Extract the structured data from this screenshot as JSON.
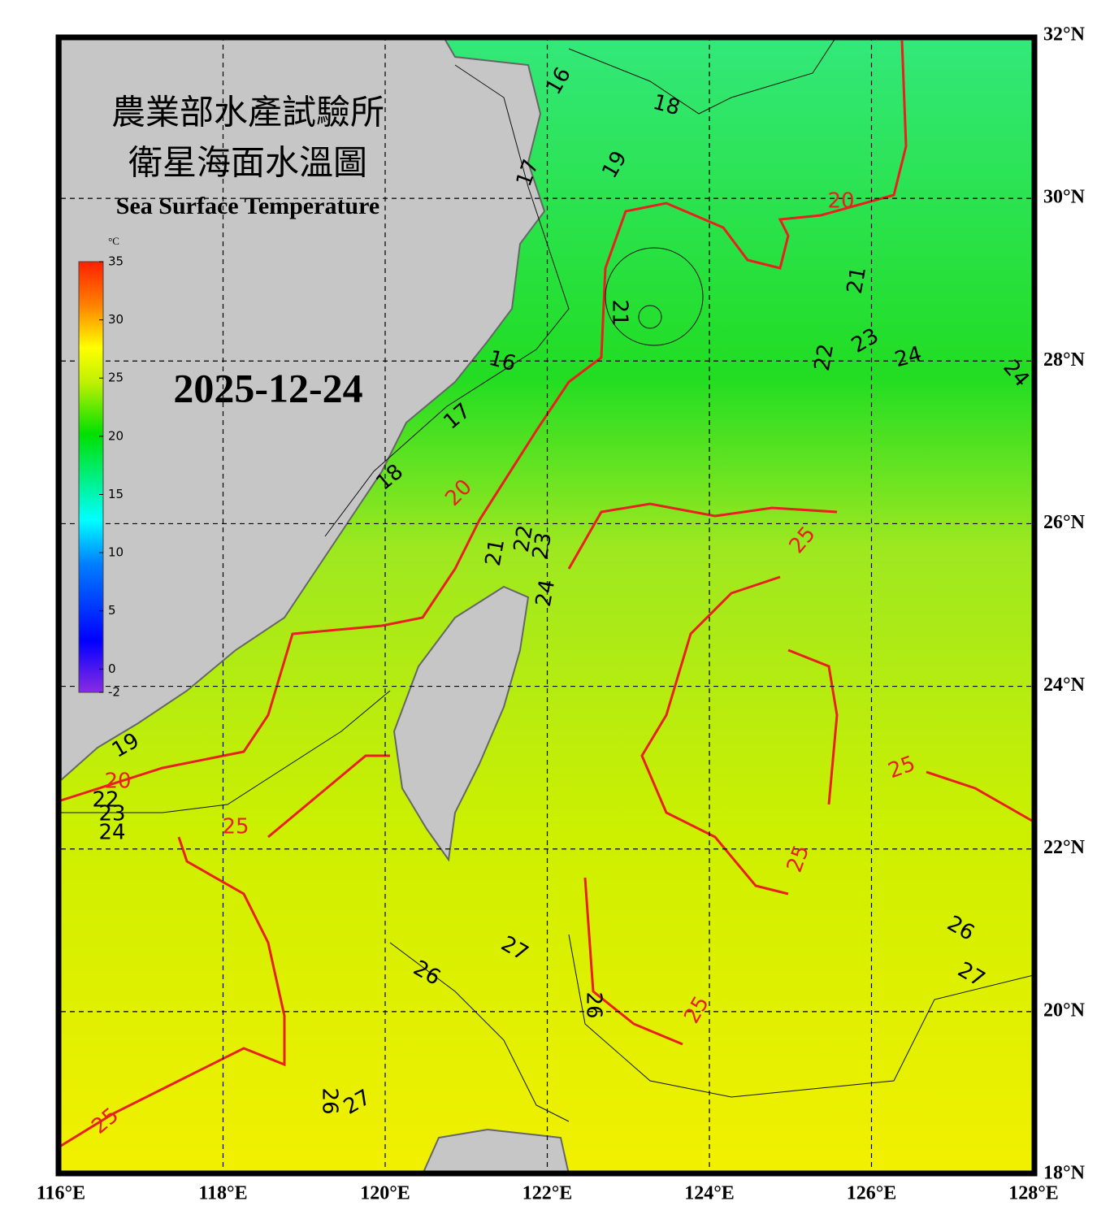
{
  "header": {
    "title_line1": "農業部水產試驗所",
    "title_line2": "衛星海面水溫圖",
    "subtitle": "Sea Surface Temperature",
    "date": "2025-12-24"
  },
  "colorbar": {
    "unit": "°C",
    "ticks": [
      35,
      30,
      25,
      20,
      15,
      10,
      5,
      0,
      -2
    ]
  },
  "lon_ticks": [
    {
      "value": 116,
      "label": "116°E"
    },
    {
      "value": 118,
      "label": "118°E"
    },
    {
      "value": 120,
      "label": "120°E"
    },
    {
      "value": 122,
      "label": "122°E"
    },
    {
      "value": 124,
      "label": "124°E"
    },
    {
      "value": 126,
      "label": "126°E"
    },
    {
      "value": 128,
      "label": "128°E"
    }
  ],
  "lat_ticks": [
    {
      "value": 32,
      "label": "32°N"
    },
    {
      "value": 30,
      "label": "30°N"
    },
    {
      "value": 28,
      "label": "28°N"
    },
    {
      "value": 26,
      "label": "26°N"
    },
    {
      "value": 24,
      "label": "24°N"
    },
    {
      "value": 22,
      "label": "22°N"
    },
    {
      "value": 20,
      "label": "20°N"
    },
    {
      "value": 18,
      "label": "18°N"
    }
  ],
  "contour_labels": [
    16,
    18,
    19,
    17,
    20,
    21,
    21,
    16,
    22,
    23,
    24,
    24,
    17,
    20,
    18,
    21,
    22,
    23,
    24,
    25,
    19,
    20,
    22,
    23,
    24,
    25,
    25,
    25,
    26,
    27,
    26,
    27,
    26,
    25,
    26,
    27,
    25
  ]
}
